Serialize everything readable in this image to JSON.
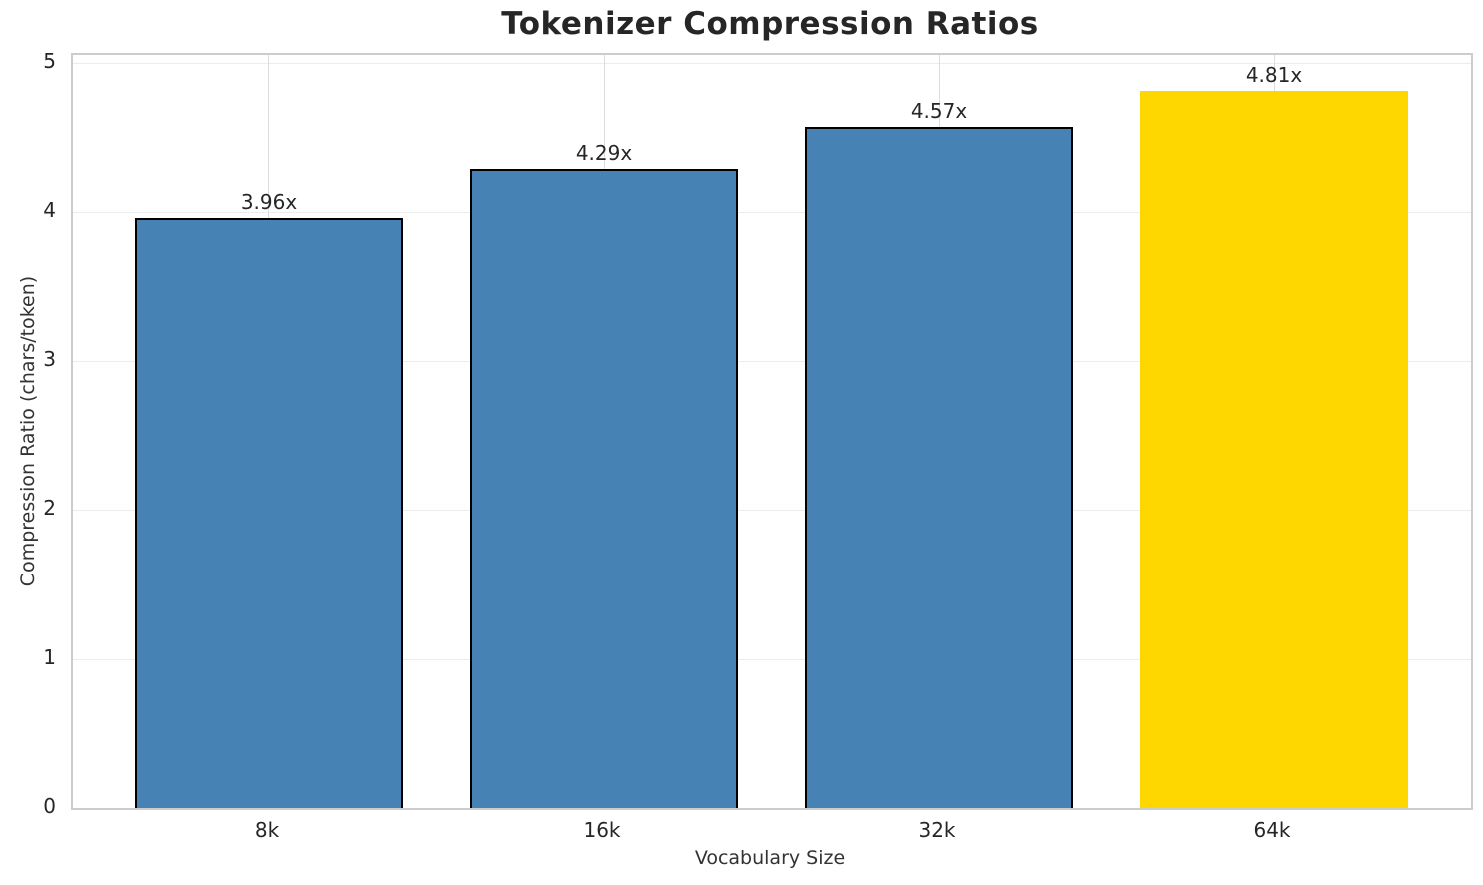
{
  "chart_data": {
    "type": "bar",
    "title": "Tokenizer Compression Ratios",
    "xlabel": "Vocabulary Size",
    "ylabel": "Compression Ratio (chars/token)",
    "categories": [
      "8k",
      "16k",
      "32k",
      "64k"
    ],
    "values": [
      3.96,
      4.29,
      4.57,
      4.81
    ],
    "bar_labels": [
      "3.96x",
      "4.29x",
      "4.57x",
      "4.81x"
    ],
    "ylim": [
      0,
      5
    ],
    "yticks": [
      0,
      1,
      2,
      3,
      4,
      5
    ],
    "grid": "on",
    "legend": "none",
    "highlight_index": 3,
    "bar_colors": [
      "#4682B4",
      "#4682B4",
      "#4682B4",
      "#FFD700"
    ],
    "bar_edge_colors": [
      "#000000",
      "#000000",
      "#000000",
      "none"
    ]
  },
  "colors": {
    "background": "#ffffff",
    "bar_blue": "#4682B4",
    "bar_gold": "#FFD700",
    "bar_edge": "#000000",
    "grid_horizontal": "#ececec",
    "grid_vertical": "#dcdcdc",
    "spine": "#cccccc",
    "text": "#262626"
  }
}
